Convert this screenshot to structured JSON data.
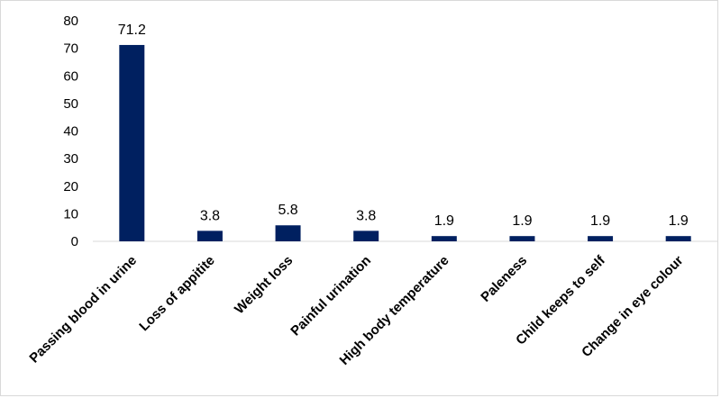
{
  "chart_data": {
    "type": "bar",
    "title": "",
    "xlabel": "",
    "ylabel": "",
    "categories": [
      "Passing blood in urine",
      "Loss of appitite",
      "Weight loss",
      "Painful urination",
      "High body temperature",
      "Paleness",
      "Child keeps to self",
      "Change in eye colour"
    ],
    "values": [
      71.2,
      3.8,
      5.8,
      3.8,
      1.9,
      1.9,
      1.9,
      1.9
    ],
    "data_labels": [
      "71.2",
      "3.8",
      "5.8",
      "3.8",
      "1.9",
      "1.9",
      "1.9",
      "1.9"
    ],
    "ylim": [
      0,
      80
    ],
    "yticks": [
      0,
      10,
      20,
      30,
      40,
      50,
      60,
      70,
      80
    ],
    "grid": false,
    "legend": "none",
    "bar_color": "#002060"
  }
}
